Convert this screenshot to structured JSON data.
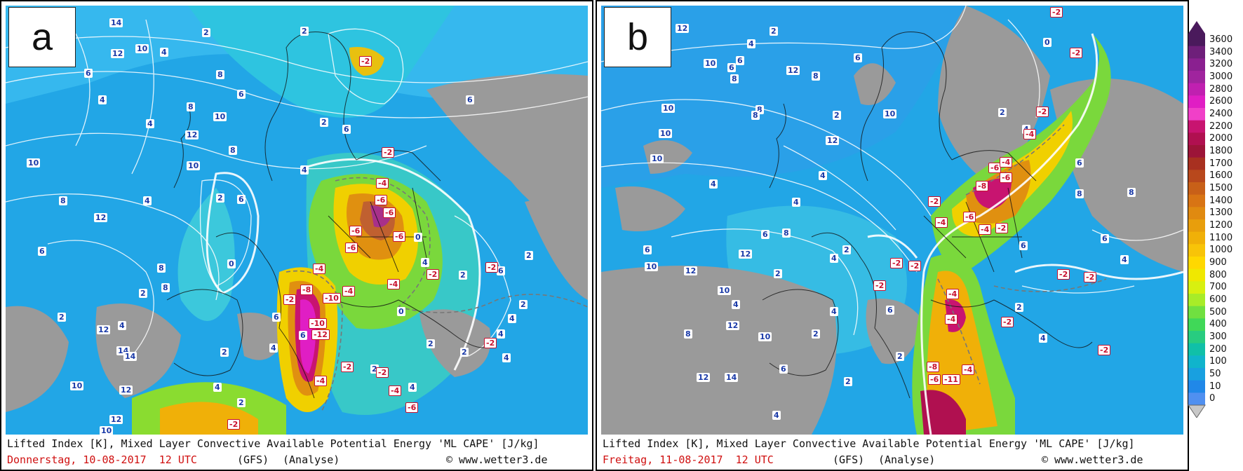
{
  "panels": [
    {
      "letter": "a",
      "caption_title": "Lifted Index [K], Mixed Layer Convective Available Potential Energy 'ML CAPE' [J/kg]",
      "caption_date": "Donnerstag, 10-08-2017  12 UTC",
      "caption_model": "(GFS)",
      "caption_type": "(Analyse)",
      "caption_site": "© www.wetter3.de",
      "positive_labels": [
        "14",
        "4",
        "2",
        "12",
        "10",
        "6",
        "8",
        "4",
        "2",
        "6",
        "8",
        "4",
        "10",
        "6",
        "12",
        "10",
        "8",
        "2",
        "4",
        "6",
        "10",
        "8",
        "4",
        "2",
        "6",
        "8",
        "12",
        "6",
        "2",
        "4",
        "0",
        "2",
        "8",
        "12",
        "14",
        "10",
        "12",
        "4",
        "2",
        "14",
        "12",
        "10",
        "4",
        "2",
        "6",
        "4",
        "2",
        "6",
        "2",
        "0",
        "4",
        "0",
        "2",
        "4",
        "2",
        "2",
        "4",
        "4",
        "2",
        "6"
      ],
      "negative_labels": [
        "-2",
        "-2",
        "-4",
        "-6",
        "-6",
        "-6",
        "-6",
        "-4",
        "-6",
        "-2",
        "-4",
        "-10",
        "-10",
        "-12",
        "-8",
        "-4",
        "-2",
        "-2",
        "-4",
        "-6",
        "-2",
        "-4",
        "-2",
        "-2",
        "-2"
      ]
    },
    {
      "letter": "b",
      "caption_title": "Lifted Index [K], Mixed Layer Convective Available Potential Energy 'ML CAPE' [J/kg]",
      "caption_date": "Freitag, 11-08-2017  12 UTC",
      "caption_model": "(GFS)",
      "caption_type": "(Analyse)",
      "caption_site": "© www.wetter3.de",
      "positive_labels": [
        "12",
        "10",
        "8",
        "6",
        "4",
        "2",
        "8",
        "10",
        "6",
        "4",
        "10",
        "12",
        "8",
        "2",
        "4",
        "6",
        "10",
        "12",
        "8",
        "6",
        "4",
        "2",
        "10",
        "12",
        "8",
        "4",
        "2",
        "6",
        "10",
        "4",
        "12",
        "8",
        "2",
        "6",
        "4",
        "2",
        "10",
        "12",
        "14",
        "6",
        "2",
        "4",
        "0",
        "6",
        "4",
        "2",
        "12",
        "10",
        "8",
        "6",
        "4",
        "2",
        "4",
        "8",
        "6"
      ],
      "negative_labels": [
        "-2",
        "-2",
        "-4",
        "-6",
        "-8",
        "-6",
        "-4",
        "-2",
        "-4",
        "-6",
        "-2",
        "-4",
        "-2",
        "-2",
        "-2",
        "-2",
        "-2",
        "-4",
        "-2",
        "-4",
        "-8",
        "-6",
        "-11",
        "-4",
        "-2",
        "-2"
      ]
    }
  ],
  "legend": {
    "levels": [
      "3600",
      "3400",
      "3200",
      "3000",
      "2800",
      "2600",
      "2400",
      "2200",
      "2000",
      "1800",
      "1700",
      "1600",
      "1500",
      "1400",
      "1300",
      "1200",
      "1100",
      "1000",
      "900",
      "800",
      "700",
      "600",
      "500",
      "400",
      "300",
      "200",
      "100",
      "50",
      "10",
      "0"
    ],
    "colors": [
      "#4a1a5c",
      "#6e1f7a",
      "#8a2090",
      "#a0249e",
      "#c020b0",
      "#e01ec4",
      "#f040c8",
      "#c81470",
      "#b01050",
      "#9c1438",
      "#a83020",
      "#b8481c",
      "#c86018",
      "#d87414",
      "#e08a10",
      "#e89e0c",
      "#f0b008",
      "#f8c408",
      "#ffd800",
      "#f0e800",
      "#d8f010",
      "#a8ec28",
      "#70e040",
      "#40d858",
      "#28cc80",
      "#10c0a8",
      "#10b4cc",
      "#18a0e0",
      "#2088e8",
      "#5090f0"
    ]
  }
}
